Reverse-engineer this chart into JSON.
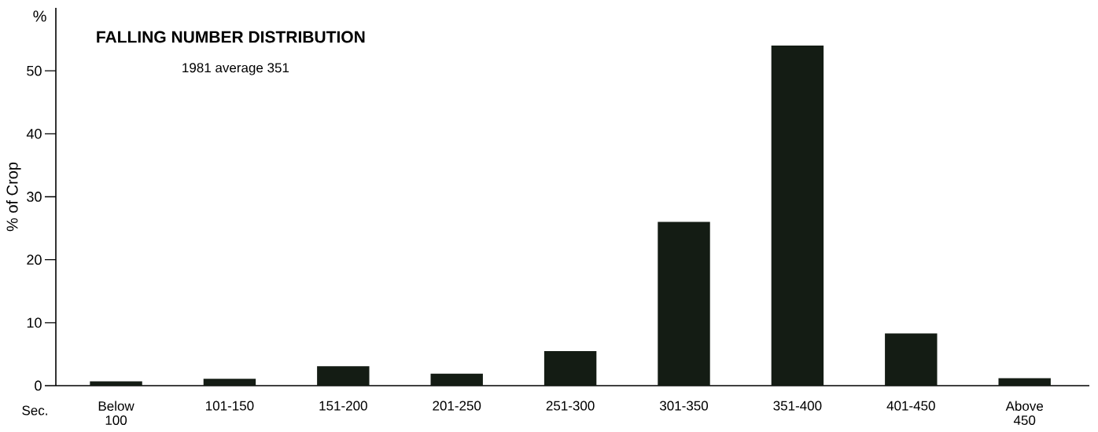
{
  "chart_data": {
    "type": "bar",
    "title": "FALLING NUMBER DISTRIBUTION",
    "subtitle": "1981 average 351",
    "xlabel": "Sec.",
    "ylabel": "% of Crop",
    "annotations": [
      "%"
    ],
    "categories": [
      "Below 100",
      "101-150",
      "151-200",
      "201-250",
      "251-300",
      "301-350",
      "351-400",
      "401-450",
      "Above 450"
    ],
    "values": [
      0.7,
      1.1,
      3.1,
      1.9,
      5.5,
      26,
      54,
      8.3,
      1.2
    ],
    "color": "#141c14",
    "ylim": [
      0,
      60
    ],
    "yticks": [
      0,
      10,
      20,
      30,
      40,
      50
    ]
  }
}
